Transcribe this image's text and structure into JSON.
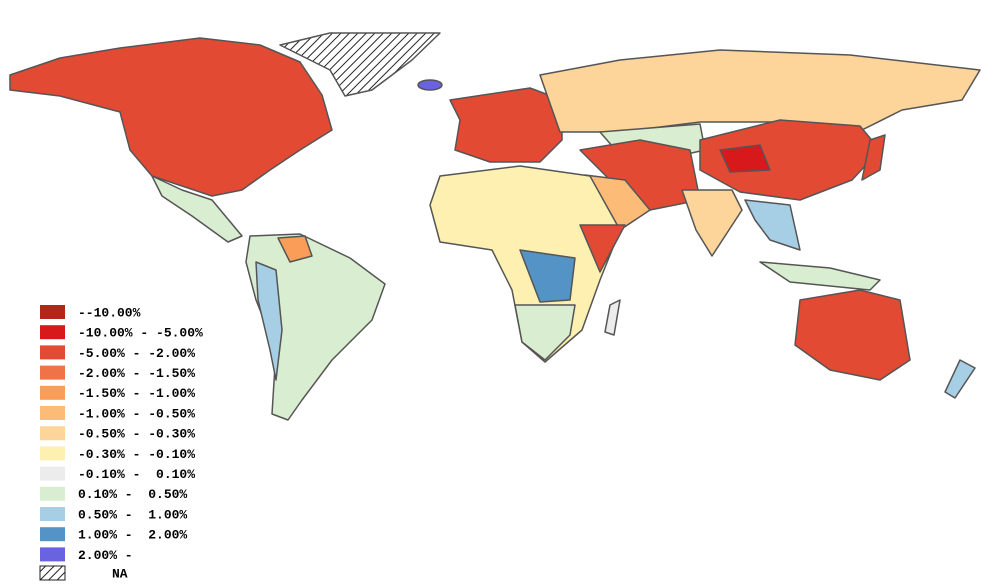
{
  "legend": {
    "items": [
      {
        "label": "--10.00%",
        "color": "#b2261a"
      },
      {
        "label": "-10.00% - -5.00%",
        "color": "#d7191c"
      },
      {
        "label": "-5.00% - -2.00%",
        "color": "#e34a33"
      },
      {
        "label": "-2.00% - -1.50%",
        "color": "#ef7347"
      },
      {
        "label": "-1.50% - -1.00%",
        "color": "#f99d58"
      },
      {
        "label": "-1.00% - -0.50%",
        "color": "#fdbb78"
      },
      {
        "label": "-0.50% - -0.30%",
        "color": "#fdd49a"
      },
      {
        "label": "-0.30% - -0.10%",
        "color": "#fef0b0"
      },
      {
        "label": "-0.10% -  0.10%",
        "color": "#ececec"
      },
      {
        "label": "0.10% -  0.50%",
        "color": "#d9eed0"
      },
      {
        "label": "0.50% -  1.00%",
        "color": "#a6cfe6"
      },
      {
        "label": "1.00% -  2.00%",
        "color": "#5393c6"
      },
      {
        "label": "2.00% -",
        "color": "#6a63e0"
      }
    ],
    "na_label": "NA"
  }
}
